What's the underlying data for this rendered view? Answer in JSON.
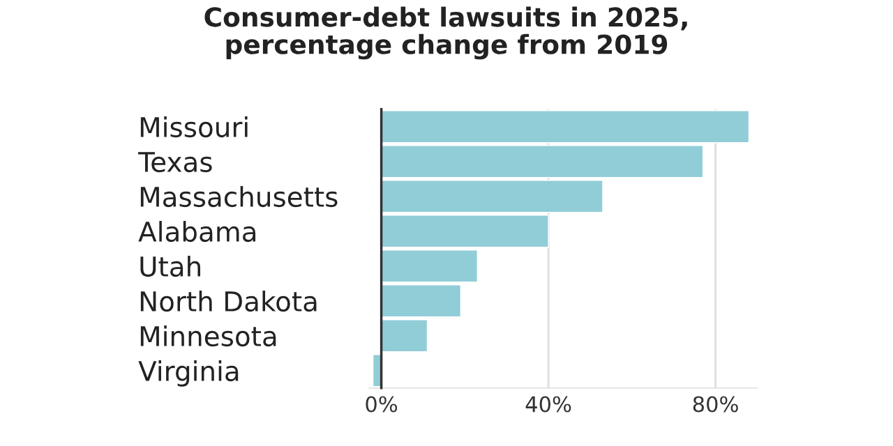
{
  "chart_data": {
    "type": "bar",
    "orientation": "horizontal",
    "title": "Consumer-debt lawsuits in 2025,\npercentage change from 2019",
    "categories": [
      "Missouri",
      "Texas",
      "Massachusetts",
      "Alabama",
      "Utah",
      "North Dakota",
      "Minnesota",
      "Virginia"
    ],
    "values": [
      88,
      77,
      53,
      40,
      23,
      19,
      11,
      -2
    ],
    "color": "#90cdd7",
    "xticks": [
      {
        "value": 0,
        "label": "0%"
      },
      {
        "value": 40,
        "label": "40%"
      },
      {
        "value": 80,
        "label": "80%"
      }
    ],
    "xlim": [
      -3,
      90
    ],
    "grid": "x"
  }
}
